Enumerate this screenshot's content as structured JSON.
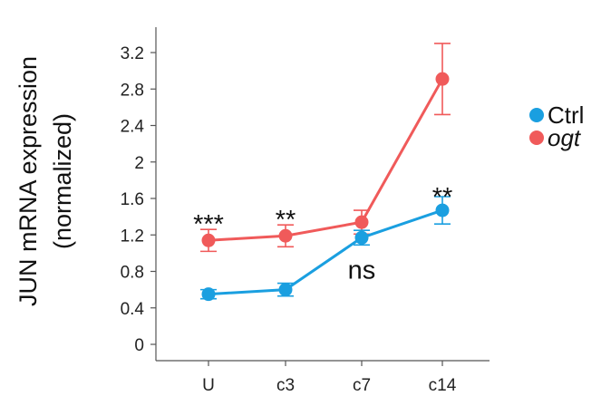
{
  "chart_data": {
    "type": "line",
    "ylabel": [
      "JUN mRNA expression",
      "(normalized)"
    ],
    "categories": [
      "U",
      "c3",
      "c7",
      "c14"
    ],
    "ylim": [
      0,
      3.2
    ],
    "yticks": [
      "0",
      "0.4",
      "0.8",
      "1.2",
      "1.6",
      "2",
      "2.4",
      "2.8",
      "3.2"
    ],
    "yticks_values": [
      0,
      0.4,
      0.8,
      1.2,
      1.6,
      2,
      2.4,
      2.8,
      3.2
    ],
    "grid": false,
    "legend_position": "right",
    "series": [
      {
        "name": "Ctrl",
        "italic": false,
        "color": "#1a9fe0",
        "values": [
          0.55,
          0.6,
          1.17,
          1.47
        ],
        "errors": [
          0.05,
          0.07,
          0.08,
          0.15
        ]
      },
      {
        "name": "ogt",
        "italic": true,
        "color": "#f05a5a",
        "values": [
          1.14,
          1.19,
          1.34,
          2.91
        ],
        "errors": [
          0.12,
          0.12,
          0.13,
          0.39
        ]
      }
    ],
    "annotations": [
      {
        "text": "***",
        "category": "U",
        "y": 1.42
      },
      {
        "text": "**",
        "category": "c3",
        "y": 1.47
      },
      {
        "text": "ns",
        "category": "c7",
        "y": 0.72
      },
      {
        "text": "**",
        "category": "c14",
        "y": 1.72
      }
    ]
  }
}
